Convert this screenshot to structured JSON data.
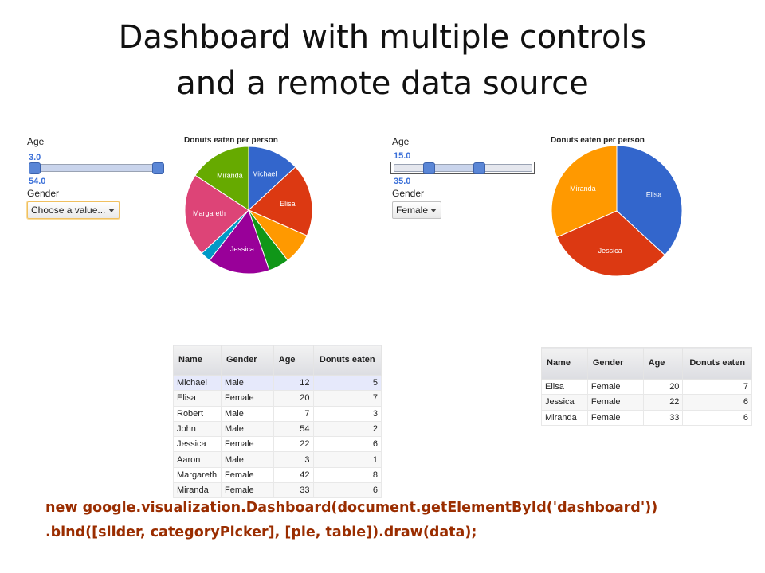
{
  "slide": {
    "title_line1": "Dashboard with multiple controls",
    "title_line2": "and a remote data source"
  },
  "left": {
    "age_label": "Age",
    "slider": {
      "low": "3.0",
      "high": "54.0",
      "low_frac": 0.0,
      "high_frac": 1.0
    },
    "gender_label": "Gender",
    "gender_value": "Choose a value...",
    "chart_title": "Donuts eaten per person",
    "table": {
      "headers": [
        "Name",
        "Gender",
        "Age",
        "Donuts eaten"
      ],
      "rows": [
        [
          "Michael",
          "Male",
          "12",
          "5"
        ],
        [
          "Elisa",
          "Female",
          "20",
          "7"
        ],
        [
          "Robert",
          "Male",
          "7",
          "3"
        ],
        [
          "John",
          "Male",
          "54",
          "2"
        ],
        [
          "Jessica",
          "Female",
          "22",
          "6"
        ],
        [
          "Aaron",
          "Male",
          "3",
          "1"
        ],
        [
          "Margareth",
          "Female",
          "42",
          "8"
        ],
        [
          "Miranda",
          "Female",
          "33",
          "6"
        ]
      ]
    }
  },
  "right": {
    "age_label": "Age",
    "slider": {
      "low": "15.0",
      "high": "35.0",
      "low_frac": 0.235,
      "high_frac": 0.627
    },
    "gender_label": "Gender",
    "gender_value": "Female",
    "chart_title": "Donuts eaten per person",
    "table": {
      "headers": [
        "Name",
        "Gender",
        "Age",
        "Donuts eaten"
      ],
      "rows": [
        [
          "Elisa",
          "Female",
          "20",
          "7"
        ],
        [
          "Jessica",
          "Female",
          "22",
          "6"
        ],
        [
          "Miranda",
          "Female",
          "33",
          "6"
        ]
      ]
    }
  },
  "chart_data": [
    {
      "type": "pie",
      "title": "Donuts eaten per person",
      "categories": [
        "Michael",
        "Elisa",
        "Robert",
        "John",
        "Jessica",
        "Aaron",
        "Margareth",
        "Miranda"
      ],
      "values": [
        5,
        7,
        3,
        2,
        6,
        1,
        8,
        6
      ],
      "labels_shown": [
        "Michael",
        "Elisa",
        "",
        "",
        "Jessica",
        "",
        "Margareth",
        "Miranda"
      ],
      "colors": [
        "#3366cc",
        "#dc3912",
        "#ff9900",
        "#109618",
        "#990099",
        "#0099c6",
        "#dd4477",
        "#66aa00"
      ]
    },
    {
      "type": "pie",
      "title": "Donuts eaten per person",
      "categories": [
        "Elisa",
        "Jessica",
        "Miranda"
      ],
      "values": [
        7,
        6,
        6
      ],
      "labels_shown": [
        "Elisa",
        "Jessica",
        "Miranda"
      ],
      "colors": [
        "#3366cc",
        "#dc3912",
        "#ff9900"
      ]
    }
  ],
  "code": {
    "line1": "new google.visualization.Dashboard(document.getElementById('dashboard'))",
    "line2": ".bind([slider, categoryPicker], [pie, table]).draw(data);"
  }
}
